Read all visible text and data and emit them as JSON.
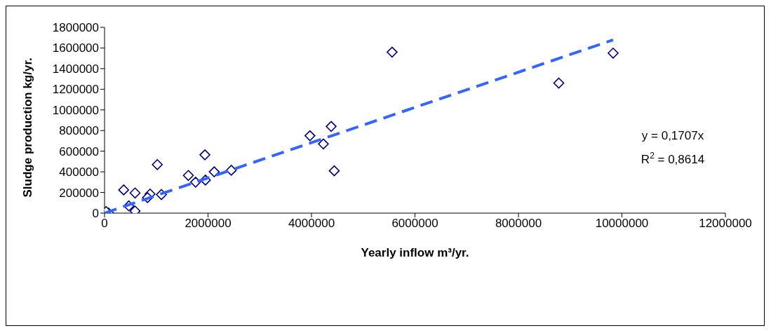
{
  "chart_data": {
    "type": "scatter",
    "xlabel": "Yearly inflow m³/yr.",
    "ylabel": "Sludge production kg/yr.",
    "xlim": [
      0,
      12000000
    ],
    "xticks": [
      0,
      2000000,
      4000000,
      6000000,
      8000000,
      10000000,
      12000000
    ],
    "ylim": [
      0,
      1800000
    ],
    "yticks": [
      0,
      200000,
      400000,
      600000,
      800000,
      1000000,
      1200000,
      1400000,
      1600000,
      1800000
    ],
    "grid": false,
    "marker": "diamond",
    "series": [
      {
        "color": "#000080",
        "x": [
          5558000,
          9830000,
          8780000,
          4380000,
          3970000,
          4230000,
          4440000,
          1940000,
          1020000,
          2450000,
          2120000,
          1620000,
          1950000,
          1760000,
          370000,
          590000,
          880000,
          1100000,
          830000,
          470000,
          590000,
          250000,
          200000,
          150000,
          100000,
          80000,
          30000
        ],
        "values": [
          1560000,
          1550000,
          1260000,
          840000,
          750000,
          670000,
          410000,
          565000,
          470000,
          415000,
          400000,
          365000,
          320000,
          300000,
          225000,
          195000,
          185000,
          180000,
          150000,
          70000,
          20000,
          null,
          null,
          null,
          null,
          0,
          15000
        ]
      },
      {
        "type": "line",
        "color": "#3366ff",
        "line_style": "dashed",
        "marker": "none",
        "x": [
          0,
          9830000
        ],
        "values": [
          0,
          1678000
        ]
      }
    ],
    "annotations": [
      "y = 0,1707x",
      "R$^{2}$ = 0,8614"
    ]
  }
}
